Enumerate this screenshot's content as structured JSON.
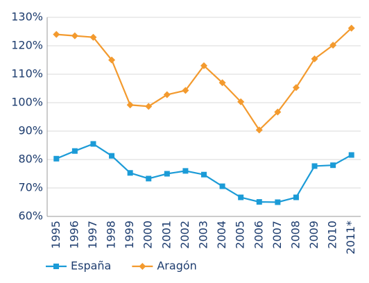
{
  "chart_data": {
    "type": "line",
    "categories": [
      "1995",
      "1996",
      "1997",
      "1998",
      "1999",
      "2000",
      "2001",
      "2002",
      "2003",
      "2004",
      "2005",
      "2006",
      "2007",
      "2008",
      "2009",
      "2010",
      "2011*"
    ],
    "series": [
      {
        "name": "España",
        "color": "#1b9bd7",
        "marker": "square",
        "values": [
          80.3,
          83,
          85.5,
          81.3,
          75.3,
          73.3,
          75,
          76,
          74.7,
          70.6,
          66.7,
          65.1,
          65,
          66.7,
          77.7,
          78,
          81.6
        ]
      },
      {
        "name": "Aragón",
        "color": "#f39a2e",
        "marker": "diamond",
        "values": [
          124,
          123.5,
          123,
          115,
          99.2,
          98.7,
          102.8,
          104.3,
          113,
          107,
          100.3,
          90.4,
          96.7,
          105.3,
          115.4,
          120.2,
          126.2
        ]
      }
    ],
    "ylim": [
      60,
      130
    ],
    "yticks": [
      {
        "value": 60,
        "label": "60%"
      },
      {
        "value": 70,
        "label": "70%"
      },
      {
        "value": 80,
        "label": "80%"
      },
      {
        "value": 90,
        "label": "90%"
      },
      {
        "value": 100,
        "label": "100%"
      },
      {
        "value": 110,
        "label": "110%"
      },
      {
        "value": 120,
        "label": "120%"
      },
      {
        "value": 130,
        "label": "130%"
      }
    ],
    "grid": true,
    "legend": "bottom-left"
  }
}
